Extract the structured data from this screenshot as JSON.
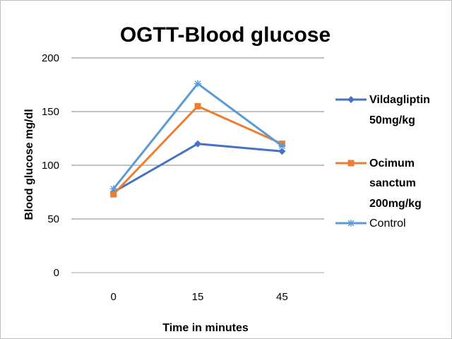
{
  "chart_data": {
    "type": "line",
    "title": "OGTT-Blood glucose",
    "xlabel": "Time in minutes",
    "ylabel": "Blood glucose mg/dl",
    "categories": [
      "0",
      "15",
      "45"
    ],
    "ylim": [
      0,
      200
    ],
    "yticks": [
      0,
      50,
      100,
      150,
      200
    ],
    "grid": true,
    "legend_position": "right",
    "series": [
      {
        "name": "Vildagliptin 50mg/kg",
        "legend_lines": [
          "Vildagliptin",
          "50mg/kg"
        ],
        "values": [
          75,
          120,
          113
        ],
        "color": "#4472c4",
        "marker": "diamond"
      },
      {
        "name": "Ocimum sanctum 200mg/kg",
        "legend_lines": [
          "Ocimum",
          "sanctum",
          "200mg/kg"
        ],
        "values": [
          73,
          155,
          120
        ],
        "color": "#ed7d31",
        "marker": "square"
      },
      {
        "name": "Control",
        "legend_lines": [
          "Control"
        ],
        "values": [
          78,
          176,
          118
        ],
        "color": "#5b9bd5",
        "marker": "asterisk"
      }
    ]
  }
}
